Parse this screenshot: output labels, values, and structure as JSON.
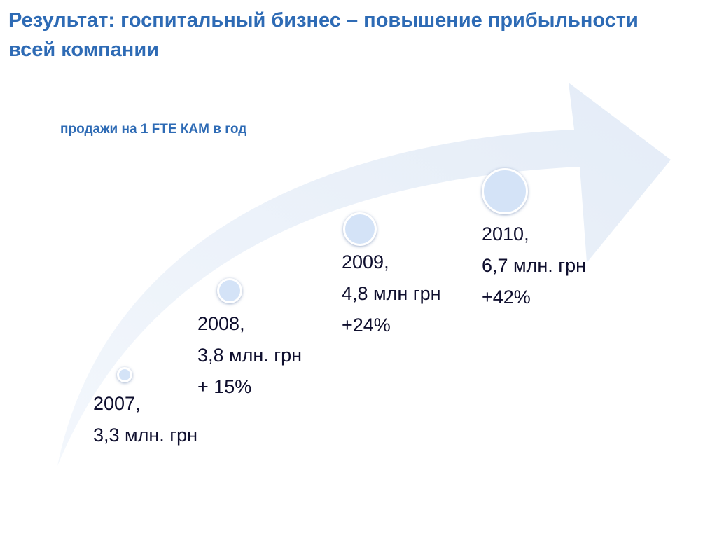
{
  "slide": {
    "title": "Результат: госпитальный бизнес – повышение прибыльности всей компании",
    "subtitle": "продажи на 1 FTE КАМ в год",
    "arrow_color": "#E8EFF8",
    "accent_color": "#2E6BB5"
  },
  "milestones": [
    {
      "year": "2007,",
      "value": "3,3 млн. грн",
      "growth": ""
    },
    {
      "year": "2008,",
      "value": "3,8 млн. грн",
      "growth": "+ 15%"
    },
    {
      "year": "2009,",
      "value": "4,8 млн грн",
      "growth": "+24%"
    },
    {
      "year": "2010,",
      "value": "6,7 млн. грн",
      "growth": "+42%"
    }
  ]
}
